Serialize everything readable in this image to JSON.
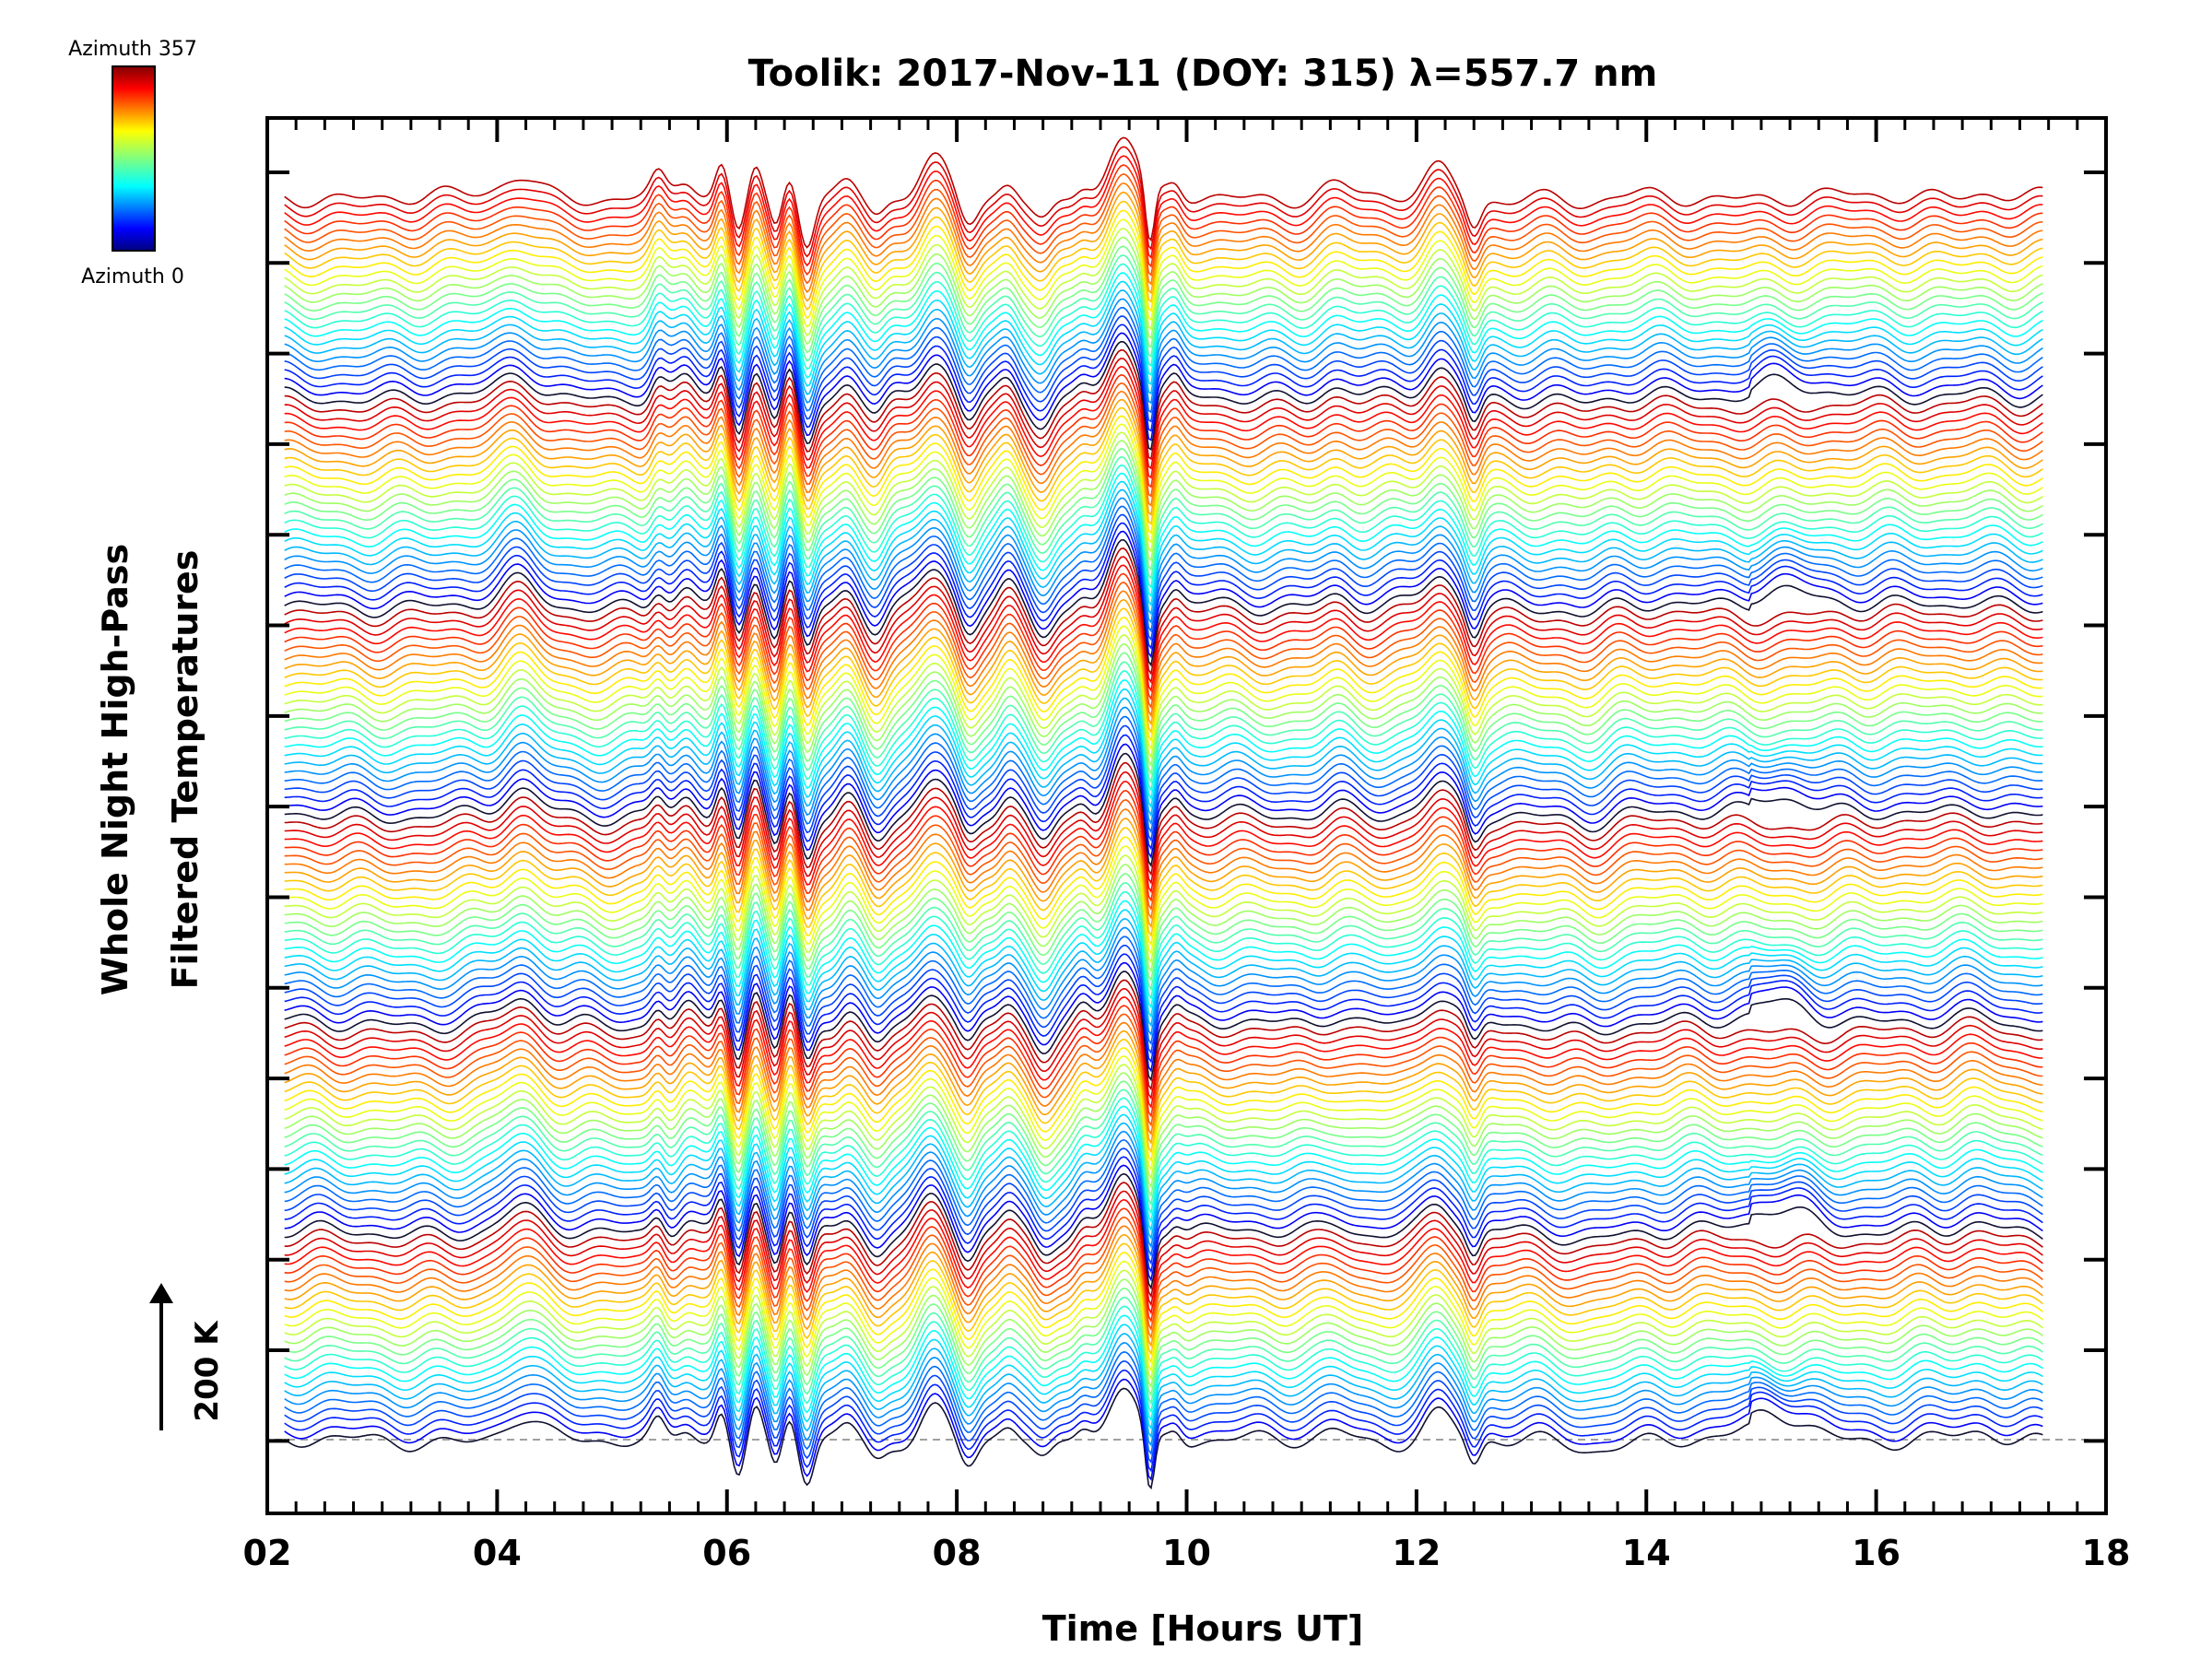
{
  "chart_data": {
    "type": "line",
    "title": "Toolik: 2017-Nov-11 (DOY: 315) λ=557.7 nm",
    "xlabel": "Time [Hours UT]",
    "ylabel_line1": "Whole Night High-Pass",
    "ylabel_line2": "Filtered Temperatures",
    "xlim": [
      2,
      18
    ],
    "data_xrange": [
      2.15,
      17.45
    ],
    "x_tick_labels": [
      "02",
      "04",
      "06",
      "08",
      "10",
      "12",
      "14",
      "16",
      "18"
    ],
    "x_tick_values": [
      2,
      4,
      6,
      8,
      10,
      12,
      14,
      16,
      18
    ],
    "y_ticks_k": [
      0,
      100,
      200,
      300,
      400,
      500,
      600,
      700,
      800,
      900,
      1000,
      1100,
      1200,
      1300,
      1400
    ],
    "ylim_k": [
      -80,
      1460
    ],
    "series_count": 144,
    "series_offset_k": 9.6,
    "baseline_k": 0,
    "scale_bar": {
      "label": "200 K",
      "value_k": 200
    },
    "colorbar": {
      "top_label": "Azimuth 357",
      "bottom_label": "Azimuth 0",
      "min": 0,
      "max": 357
    },
    "features": [
      {
        "t": 4.2,
        "amp_k": 25,
        "width_h": 0.15
      },
      {
        "t": 5.4,
        "amp_k": 20,
        "width_h": 0.06
      },
      {
        "t": 5.65,
        "amp_k": 18,
        "width_h": 0.08
      },
      {
        "t": 5.95,
        "amp_k": 32,
        "width_h": 0.05
      },
      {
        "t": 6.1,
        "amp_k": -38,
        "width_h": 0.05
      },
      {
        "t": 6.25,
        "amp_k": 30,
        "width_h": 0.05
      },
      {
        "t": 6.42,
        "amp_k": -32,
        "width_h": 0.05
      },
      {
        "t": 6.55,
        "amp_k": 28,
        "width_h": 0.05
      },
      {
        "t": 6.7,
        "amp_k": -45,
        "width_h": 0.06
      },
      {
        "t": 7.05,
        "amp_k": 18,
        "width_h": 0.08
      },
      {
        "t": 7.3,
        "amp_k": -22,
        "width_h": 0.08
      },
      {
        "t": 7.8,
        "amp_k": 38,
        "width_h": 0.12
      },
      {
        "t": 8.1,
        "amp_k": -30,
        "width_h": 0.08
      },
      {
        "t": 8.45,
        "amp_k": 20,
        "width_h": 0.08
      },
      {
        "t": 8.75,
        "amp_k": -28,
        "width_h": 0.09
      },
      {
        "t": 9.1,
        "amp_k": 15,
        "width_h": 0.07
      },
      {
        "t": 9.45,
        "amp_k": 65,
        "width_h": 0.12
      },
      {
        "t": 9.68,
        "amp_k": -70,
        "width_h": 0.04
      },
      {
        "t": 9.9,
        "amp_k": 15,
        "width_h": 0.06
      },
      {
        "t": 11.3,
        "amp_k": 12,
        "width_h": 0.12
      },
      {
        "t": 12.2,
        "amp_k": 30,
        "width_h": 0.12
      },
      {
        "t": 12.5,
        "amp_k": -30,
        "width_h": 0.06
      },
      {
        "t": 13.5,
        "amp_k": -8,
        "width_h": 0.15
      },
      {
        "t": 16.9,
        "amp_k": 8,
        "width_h": 0.15
      }
    ],
    "late_bump": {
      "t": 15.15,
      "amp_k": 35,
      "width_h": 0.28,
      "azimuth_weighted": true
    }
  }
}
